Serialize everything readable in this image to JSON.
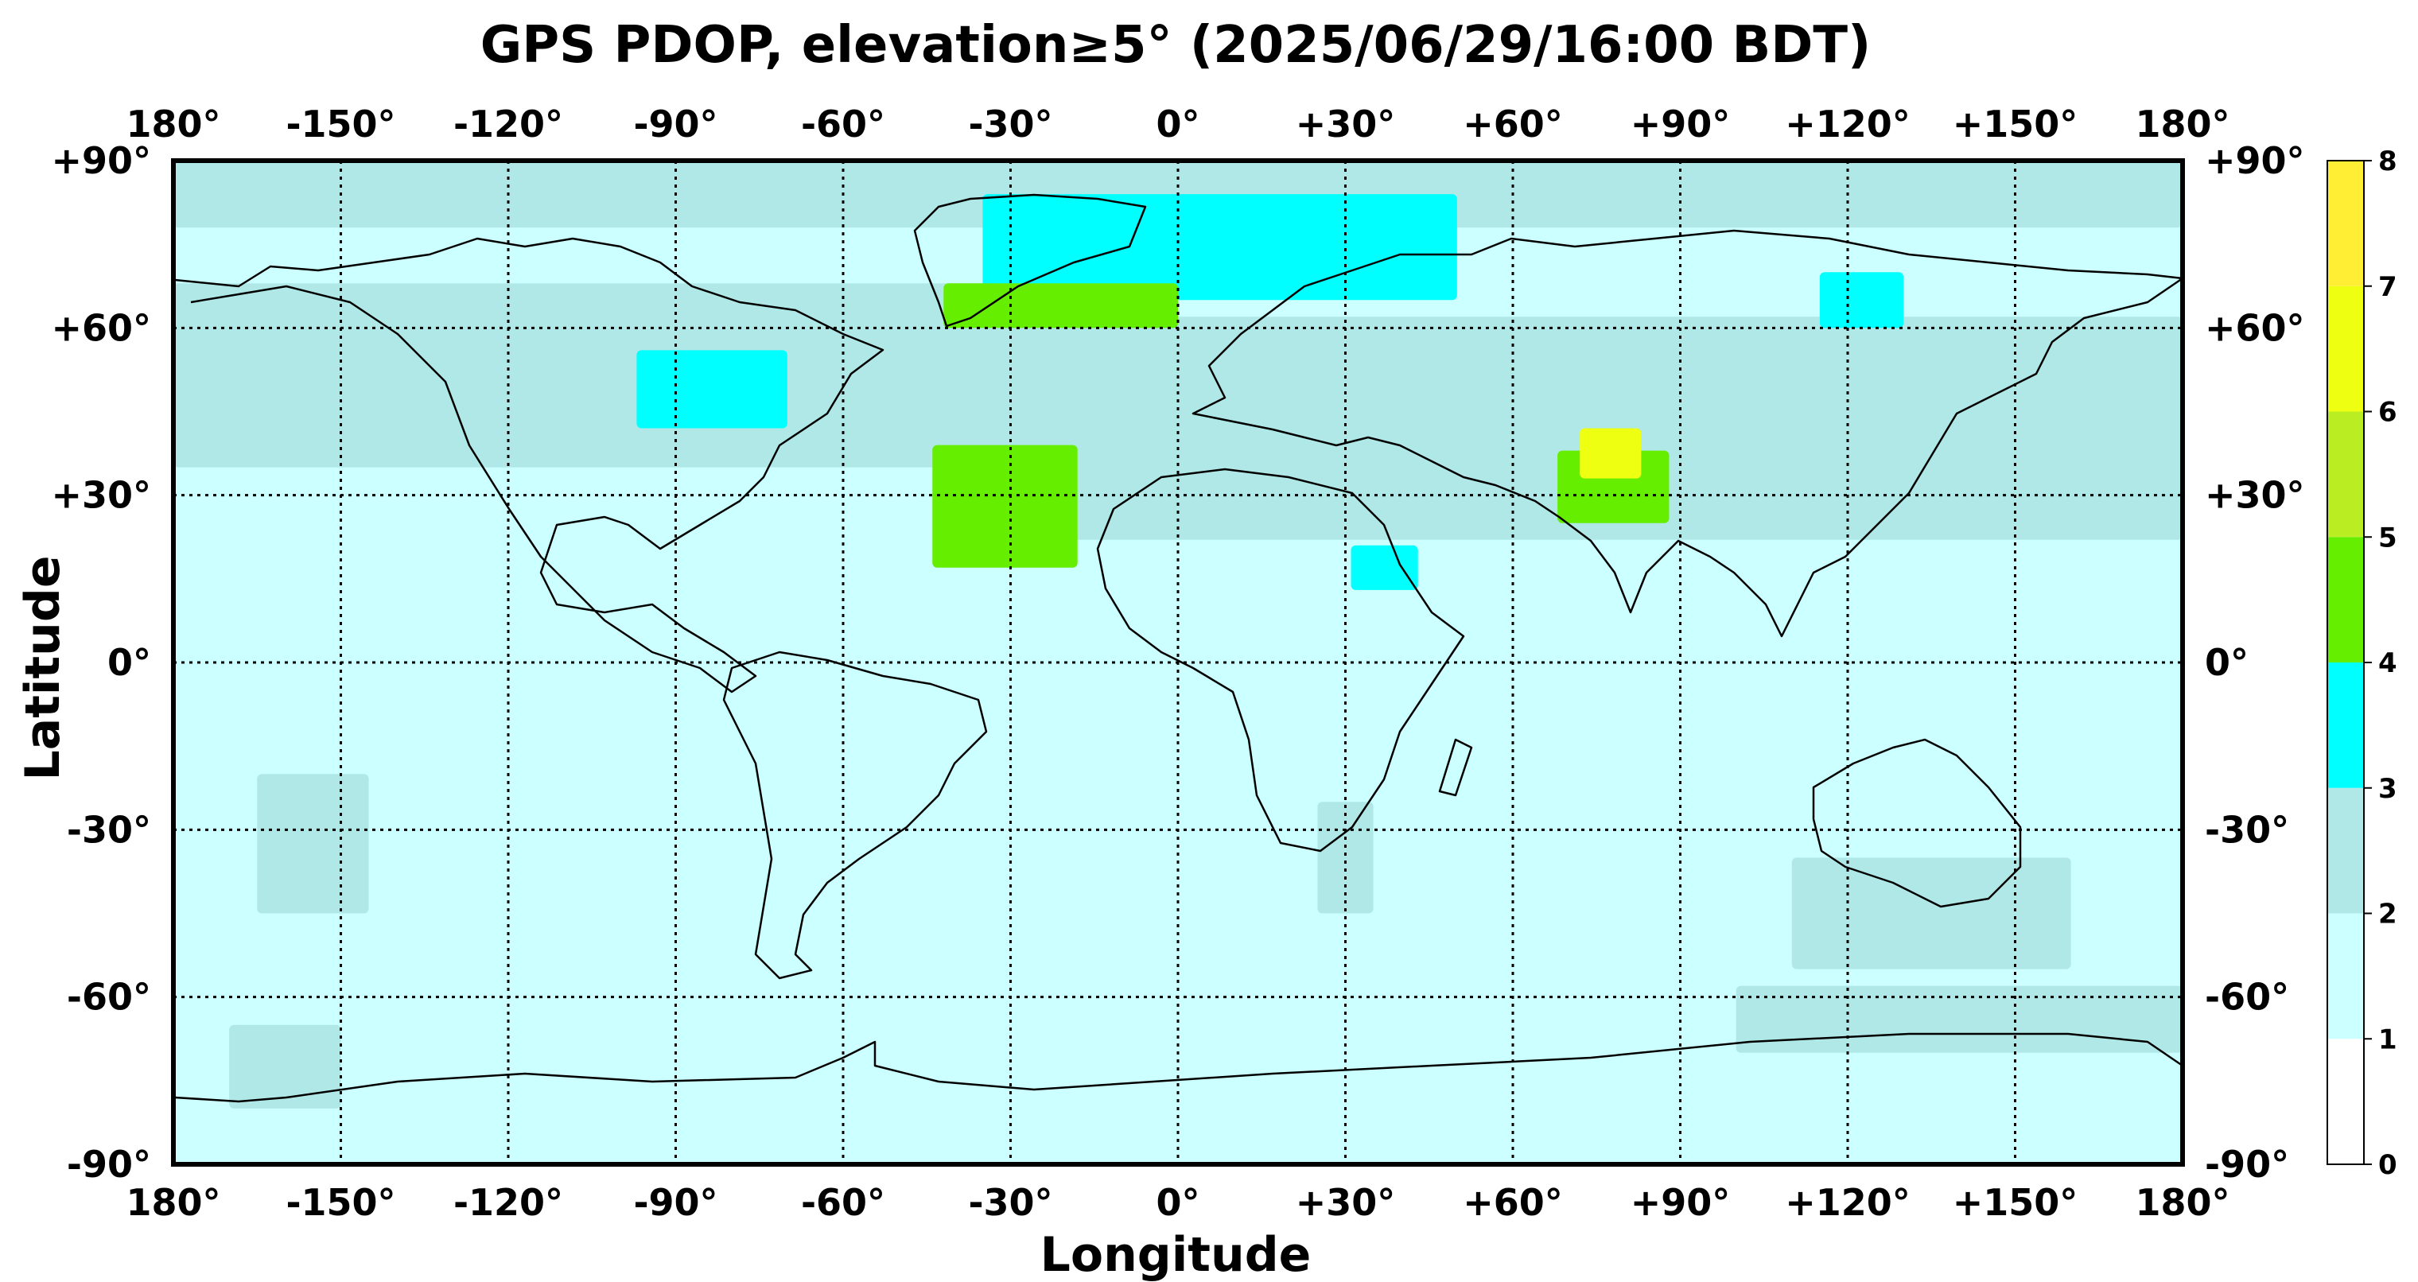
{
  "title": "GPS PDOP, elevation≥5° (2025/06/29/16:00 BDT)",
  "xlabel": "Longitude",
  "ylabel": "Latitude",
  "lon_ticks": [
    "180°",
    "-150°",
    "-120°",
    "-90°",
    "-60°",
    "-30°",
    "0°",
    "+30°",
    "+60°",
    "+90°",
    "+120°",
    "+150°",
    "180°"
  ],
  "lat_ticks": [
    "+90°",
    "+60°",
    "+30°",
    "0°",
    "-30°",
    "-60°",
    "-90°"
  ],
  "colorbar": {
    "ticks": [
      "0",
      "1",
      "2",
      "3",
      "4",
      "5",
      "6",
      "7",
      "8"
    ],
    "colors": [
      "#ffffff",
      "#ccffff",
      "#b0e8e8",
      "#00ffff",
      "#66ee00",
      "#bbee22",
      "#eeff11",
      "#ffee33"
    ]
  },
  "chart_data": {
    "type": "heatmap",
    "title": "GPS PDOP, elevation≥5° (2025/06/29/16:00 BDT)",
    "xlabel": "Longitude",
    "ylabel": "Latitude",
    "xlim": [
      -180,
      180
    ],
    "ylim": [
      -90,
      90
    ],
    "grid": true,
    "background_value_range": [
      1,
      2
    ],
    "regions": [
      {
        "name": "",
        "range": [
          2,
          3
        ],
        "lon": [
          -180,
          180
        ],
        "lat": [
          78,
          90
        ]
      },
      {
        "name": "",
        "range": [
          2,
          3
        ],
        "lon": [
          -180,
          -20
        ],
        "lat": [
          35,
          68
        ]
      },
      {
        "name": "",
        "range": [
          2,
          3
        ],
        "lon": [
          -40,
          180
        ],
        "lat": [
          22,
          62
        ]
      },
      {
        "name": "",
        "range": [
          3,
          4
        ],
        "lon": [
          -35,
          50
        ],
        "lat": [
          65,
          84
        ]
      },
      {
        "name": "",
        "range": [
          4,
          5
        ],
        "lon": [
          -42,
          0
        ],
        "lat": [
          60,
          68
        ]
      },
      {
        "name": "",
        "range": [
          4,
          5
        ],
        "lon": [
          -44,
          -18
        ],
        "lat": [
          17,
          39
        ]
      },
      {
        "name": "",
        "range": [
          3,
          4
        ],
        "lon": [
          -97,
          -70
        ],
        "lat": [
          42,
          56
        ]
      },
      {
        "name": "",
        "range": [
          4,
          5
        ],
        "lon": [
          68,
          88
        ],
        "lat": [
          25,
          38
        ]
      },
      {
        "name": "",
        "range": [
          6,
          8
        ],
        "lon": [
          72,
          83
        ],
        "lat": [
          33,
          42
        ]
      },
      {
        "name": "",
        "range": [
          3,
          4
        ],
        "lon": [
          31,
          43
        ],
        "lat": [
          13,
          21
        ]
      },
      {
        "name": "",
        "range": [
          3,
          4
        ],
        "lon": [
          115,
          130
        ],
        "lat": [
          60,
          70
        ]
      },
      {
        "name": "",
        "range": [
          2,
          3
        ],
        "lon": [
          -165,
          -145
        ],
        "lat": [
          -45,
          -20
        ]
      },
      {
        "name": "",
        "range": [
          2,
          3
        ],
        "lon": [
          110,
          160
        ],
        "lat": [
          -55,
          -35
        ]
      },
      {
        "name": "",
        "range": [
          2,
          3
        ],
        "lon": [
          25,
          35
        ],
        "lat": [
          -45,
          -25
        ]
      },
      {
        "name": "",
        "range": [
          2,
          3
        ],
        "lon": [
          -170,
          -150
        ],
        "lat": [
          -80,
          -65
        ]
      },
      {
        "name": "",
        "range": [
          2,
          3
        ],
        "lon": [
          100,
          180
        ],
        "lat": [
          -70,
          -58
        ]
      }
    ]
  }
}
